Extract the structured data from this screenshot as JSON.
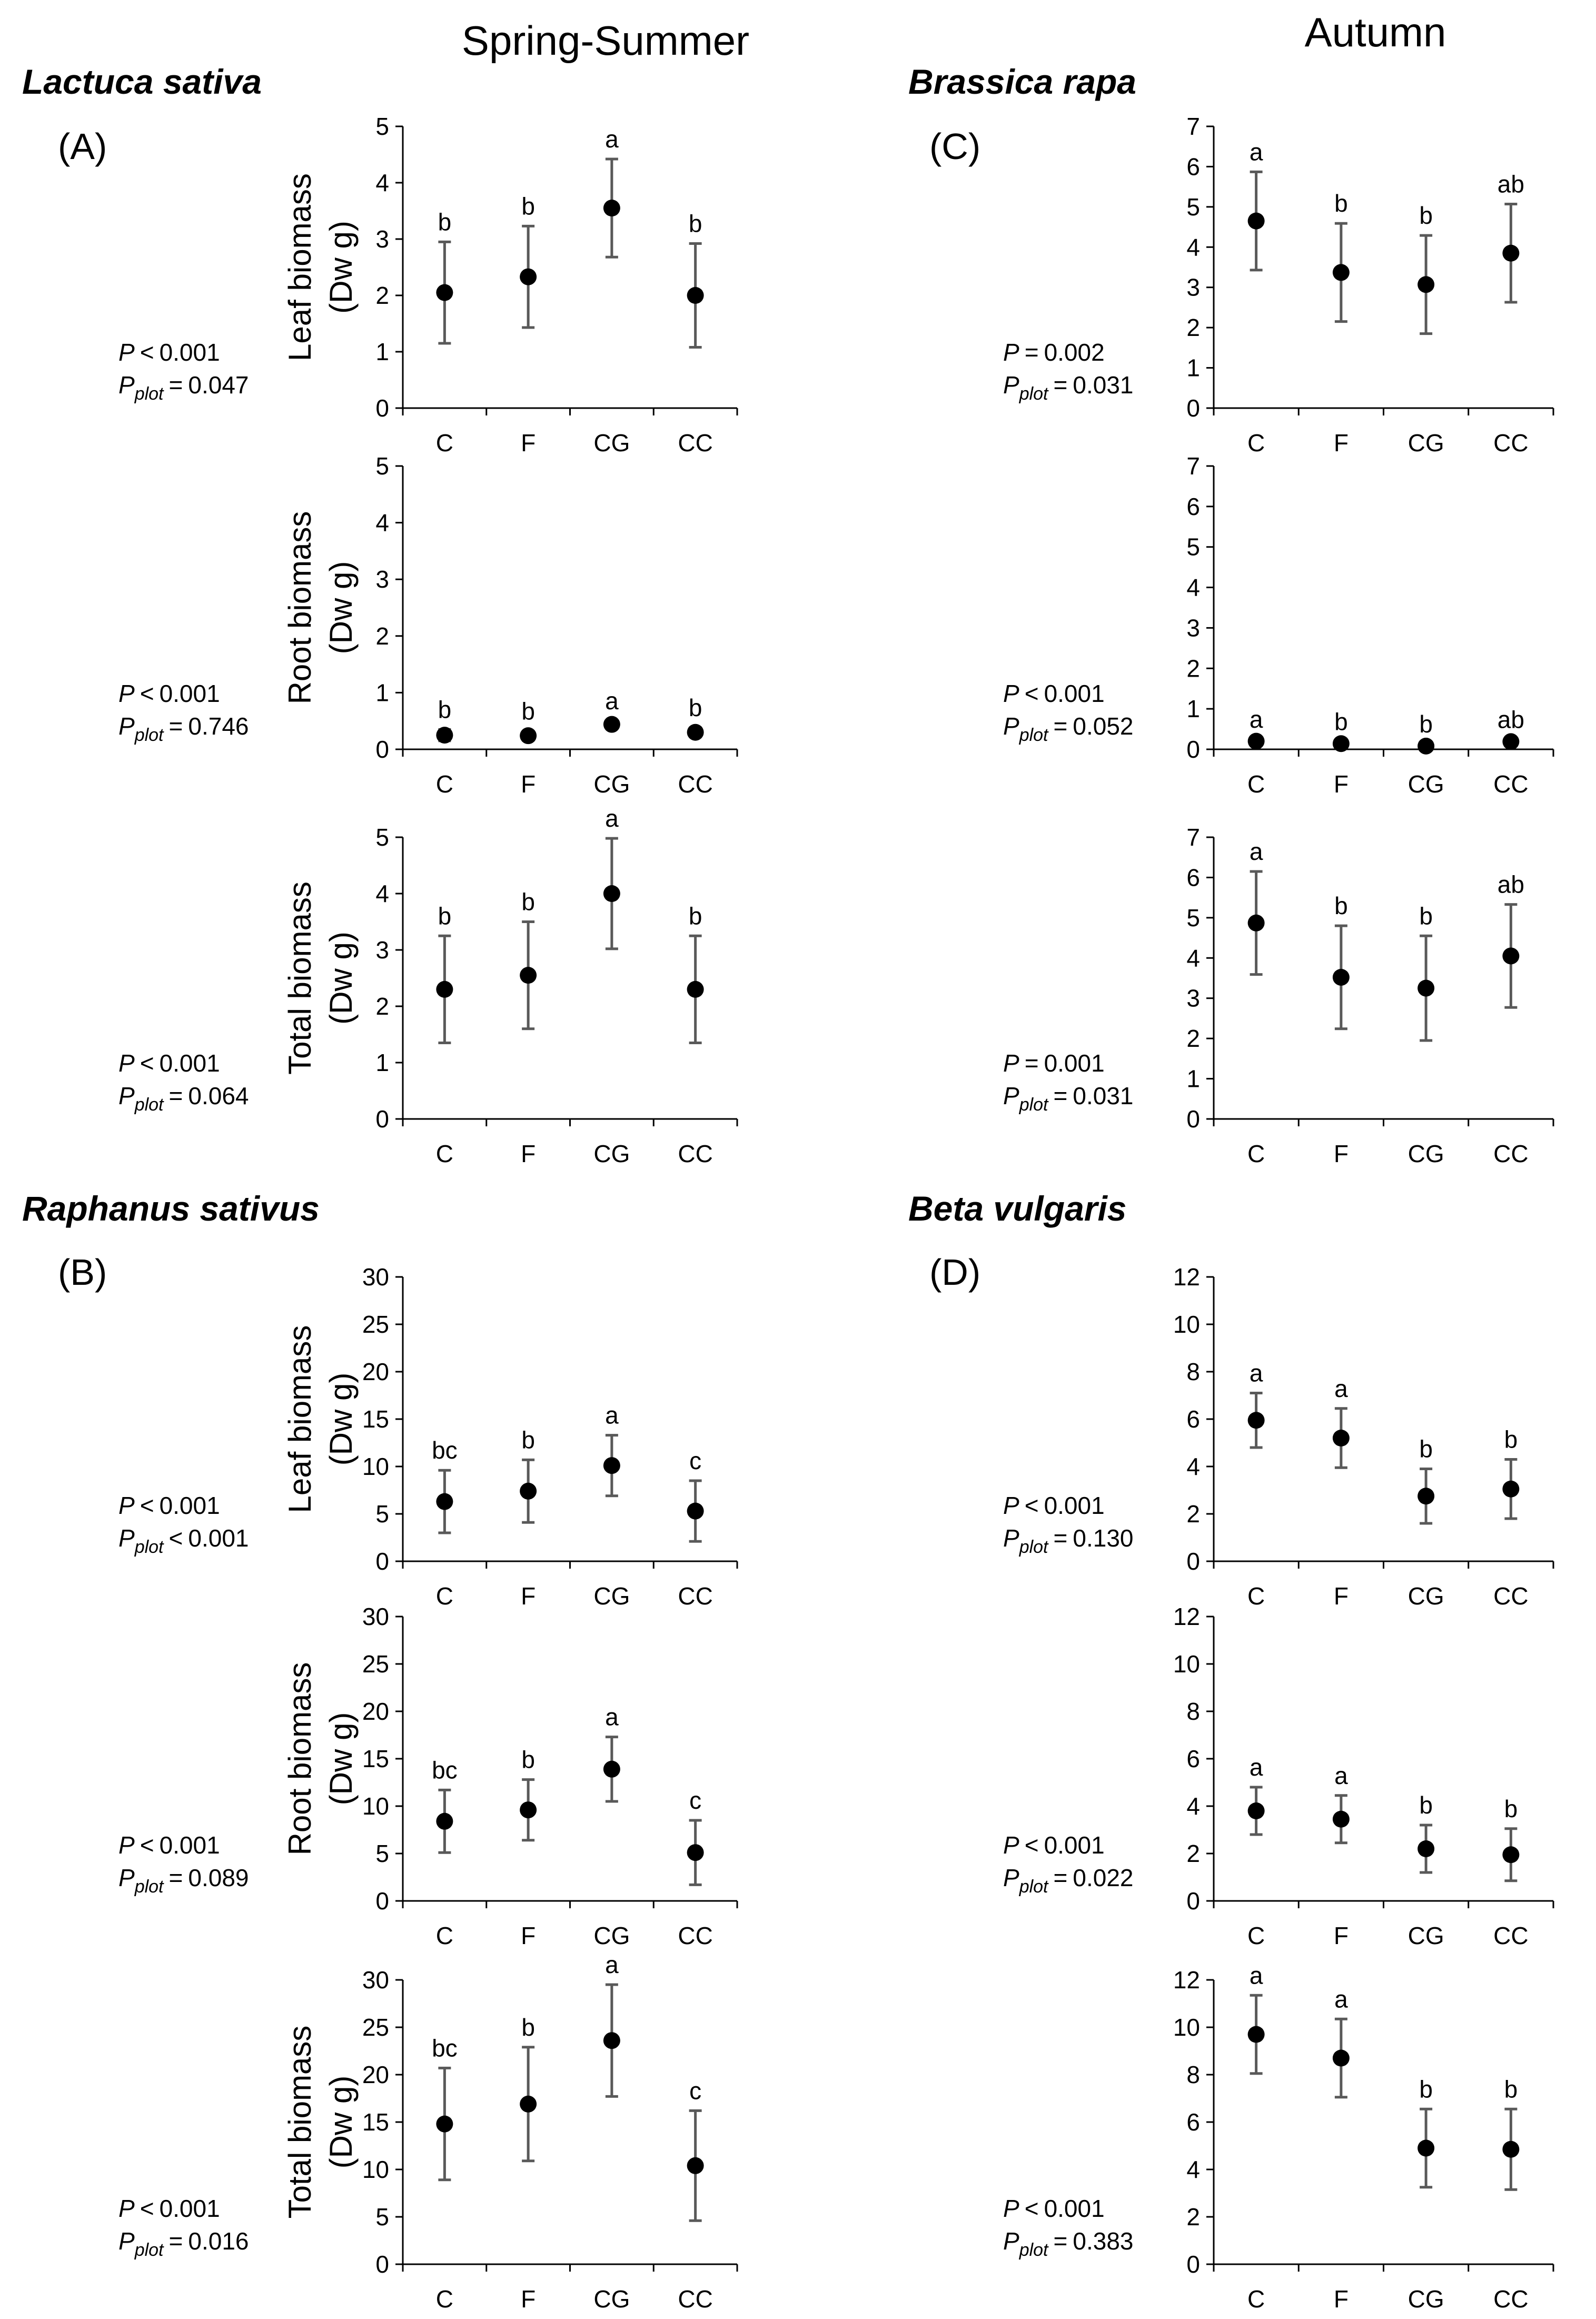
{
  "headers": {
    "left": "Spring-Summer",
    "right": "Autumn"
  },
  "panels": [
    {
      "id": "A",
      "label": "(A)",
      "species": "Lactuca sativa",
      "column": "left",
      "row": "top",
      "plots": [
        {
          "ylabel1": "Leaf biomass",
          "ylabel2": "(Dw g)",
          "ymax": 5,
          "step": 1,
          "stat": {
            "p_prefix": "P",
            "p_sign": "<",
            "p_value": "0.001",
            "pplot_prefix": "P",
            "pplot_sub": "plot",
            "pplot_sign": "=",
            "pplot_value": "0.047"
          }
        },
        {
          "ylabel1": "Root biomass",
          "ylabel2": "(Dw g)",
          "ymax": 5,
          "step": 1,
          "stat": {
            "p_prefix": "P",
            "p_sign": "<",
            "p_value": "0.001",
            "pplot_prefix": "P",
            "pplot_sub": "plot",
            "pplot_sign": "=",
            "pplot_value": "0.746"
          }
        },
        {
          "ylabel1": "Total biomass",
          "ylabel2": "(Dw g)",
          "ymax": 5,
          "step": 1,
          "stat": {
            "p_prefix": "P",
            "p_sign": "<",
            "p_value": "0.001",
            "pplot_prefix": "P",
            "pplot_sub": "plot",
            "pplot_sign": "=",
            "pplot_value": "0.064"
          }
        }
      ]
    },
    {
      "id": "B",
      "label": "(B)",
      "species": "Raphanus sativus",
      "column": "left",
      "row": "bottom",
      "plots": [
        {
          "ylabel1": "Leaf biomass",
          "ylabel2": "(Dw g)",
          "ymax": 30,
          "step": 5,
          "stat": {
            "p_prefix": "P",
            "p_sign": "<",
            "p_value": "0.001",
            "pplot_prefix": "P",
            "pplot_sub": "plot",
            "pplot_sign": "<",
            "pplot_value": "0.001"
          }
        },
        {
          "ylabel1": "Root biomass",
          "ylabel2": "(Dw g)",
          "ymax": 30,
          "step": 5,
          "stat": {
            "p_prefix": "P",
            "p_sign": "<",
            "p_value": "0.001",
            "pplot_prefix": "P",
            "pplot_sub": "plot",
            "pplot_sign": "=",
            "pplot_value": "0.089"
          }
        },
        {
          "ylabel1": "Total biomass",
          "ylabel2": "(Dw g)",
          "ymax": 30,
          "step": 5,
          "stat": {
            "p_prefix": "P",
            "p_sign": "<",
            "p_value": "0.001",
            "pplot_prefix": "P",
            "pplot_sub": "plot",
            "pplot_sign": "=",
            "pplot_value": "0.016"
          }
        }
      ]
    },
    {
      "id": "C",
      "label": "(C)",
      "species": "Brassica rapa",
      "column": "right",
      "row": "top",
      "plots": [
        {
          "ylabel1": "",
          "ylabel2": "",
          "ymax": 7,
          "step": 1,
          "stat": {
            "p_prefix": "P",
            "p_sign": "=",
            "p_value": "0.002",
            "pplot_prefix": "P",
            "pplot_sub": "plot",
            "pplot_sign": "=",
            "pplot_value": "0.031"
          }
        },
        {
          "ylabel1": "",
          "ylabel2": "",
          "ymax": 7,
          "step": 1,
          "stat": {
            "p_prefix": "P",
            "p_sign": "<",
            "p_value": "0.001",
            "pplot_prefix": "P",
            "pplot_sub": "plot",
            "pplot_sign": "=",
            "pplot_value": "0.052"
          }
        },
        {
          "ylabel1": "",
          "ylabel2": "",
          "ymax": 7,
          "step": 1,
          "stat": {
            "p_prefix": "P",
            "p_sign": "=",
            "p_value": "0.001",
            "pplot_prefix": "P",
            "pplot_sub": "plot",
            "pplot_sign": "=",
            "pplot_value": "0.031"
          }
        }
      ]
    },
    {
      "id": "D",
      "label": "(D)",
      "species": "Beta vulgaris",
      "column": "right",
      "row": "bottom",
      "plots": [
        {
          "ylabel1": "",
          "ylabel2": "",
          "ymax": 12,
          "step": 2,
          "stat": {
            "p_prefix": "P",
            "p_sign": "<",
            "p_value": "0.001",
            "pplot_prefix": "P",
            "pplot_sub": "plot",
            "pplot_sign": "=",
            "pplot_value": "0.130"
          }
        },
        {
          "ylabel1": "",
          "ylabel2": "",
          "ymax": 12,
          "step": 2,
          "stat": {
            "p_prefix": "P",
            "p_sign": "<",
            "p_value": "0.001",
            "pplot_prefix": "P",
            "pplot_sub": "plot",
            "pplot_sign": "=",
            "pplot_value": "0.022"
          }
        },
        {
          "ylabel1": "",
          "ylabel2": "",
          "ymax": 12,
          "step": 2,
          "stat": {
            "p_prefix": "P",
            "p_sign": "<",
            "p_value": "0.001",
            "pplot_prefix": "P",
            "pplot_sub": "plot",
            "pplot_sign": "=",
            "pplot_value": "0.383"
          }
        }
      ]
    }
  ],
  "chart_data": [
    {
      "type": "scatter",
      "title": "Lactuca sativa (A) Leaf biomass",
      "ylabel": "Leaf biomass (Dw g)",
      "categories": [
        "C",
        "F",
        "CG",
        "CC"
      ],
      "ylim": [
        0,
        5
      ],
      "values": [
        2.05,
        2.33,
        3.55,
        2.0
      ],
      "errors": [
        0.9,
        0.9,
        0.87,
        0.92
      ],
      "letters": [
        "b",
        "b",
        "a",
        "b"
      ]
    },
    {
      "type": "scatter",
      "title": "Lactuca sativa (A) Root biomass",
      "ylabel": "Root biomass (Dw g)",
      "categories": [
        "C",
        "F",
        "CG",
        "CC"
      ],
      "ylim": [
        0,
        5
      ],
      "values": [
        0.25,
        0.24,
        0.44,
        0.3
      ],
      "errors": [
        0.1,
        0.08,
        0.06,
        0.08
      ],
      "letters": [
        "b",
        "b",
        "a",
        "b"
      ]
    },
    {
      "type": "scatter",
      "title": "Lactuca sativa (A) Total biomass",
      "ylabel": "Total biomass (Dw g)",
      "categories": [
        "C",
        "F",
        "CG",
        "CC"
      ],
      "ylim": [
        0,
        5
      ],
      "values": [
        2.3,
        2.55,
        4.0,
        2.3
      ],
      "errors": [
        0.95,
        0.95,
        0.98,
        0.95
      ],
      "letters": [
        "b",
        "b",
        "a",
        "b"
      ]
    },
    {
      "type": "scatter",
      "title": "Raphanus sativus (B) Leaf biomass",
      "ylabel": "Leaf biomass (Dw g)",
      "categories": [
        "C",
        "F",
        "CG",
        "CC"
      ],
      "ylim": [
        0,
        30
      ],
      "values": [
        6.3,
        7.4,
        10.1,
        5.3
      ],
      "errors": [
        3.3,
        3.3,
        3.2,
        3.2
      ],
      "letters": [
        "bc",
        "b",
        "a",
        "c"
      ]
    },
    {
      "type": "scatter",
      "title": "Raphanus sativus (B) Root biomass",
      "ylabel": "Root biomass (Dw g)",
      "categories": [
        "C",
        "F",
        "CG",
        "CC"
      ],
      "ylim": [
        0,
        30
      ],
      "values": [
        8.4,
        9.6,
        13.9,
        5.1
      ],
      "errors": [
        3.3,
        3.2,
        3.4,
        3.4
      ],
      "letters": [
        "bc",
        "b",
        "a",
        "c"
      ]
    },
    {
      "type": "scatter",
      "title": "Raphanus sativus (B) Total biomass",
      "ylabel": "Total biomass (Dw g)",
      "categories": [
        "C",
        "F",
        "CG",
        "CC"
      ],
      "ylim": [
        0,
        30
      ],
      "values": [
        14.8,
        16.9,
        23.6,
        10.4
      ],
      "errors": [
        5.9,
        6.0,
        5.9,
        5.8
      ],
      "letters": [
        "bc",
        "b",
        "a",
        "c"
      ]
    },
    {
      "type": "scatter",
      "title": "Brassica rapa (C) Leaf biomass",
      "ylabel": "",
      "categories": [
        "C",
        "F",
        "CG",
        "CC"
      ],
      "ylim": [
        0,
        7
      ],
      "values": [
        4.65,
        3.37,
        3.07,
        3.85
      ],
      "errors": [
        1.22,
        1.22,
        1.22,
        1.22
      ],
      "letters": [
        "a",
        "b",
        "b",
        "ab"
      ]
    },
    {
      "type": "scatter",
      "title": "Brassica rapa (C) Root biomass",
      "ylabel": "",
      "categories": [
        "C",
        "F",
        "CG",
        "CC"
      ],
      "ylim": [
        0,
        7
      ],
      "values": [
        0.2,
        0.14,
        0.08,
        0.19
      ],
      "errors": [
        0.05,
        0.05,
        0.05,
        0.05
      ],
      "letters": [
        "a",
        "b",
        "b",
        "ab"
      ]
    },
    {
      "type": "scatter",
      "title": "Brassica rapa (C) Total biomass",
      "ylabel": "",
      "categories": [
        "C",
        "F",
        "CG",
        "CC"
      ],
      "ylim": [
        0,
        7
      ],
      "values": [
        4.87,
        3.52,
        3.25,
        4.05
      ],
      "errors": [
        1.28,
        1.28,
        1.3,
        1.28
      ],
      "letters": [
        "a",
        "b",
        "b",
        "ab"
      ]
    },
    {
      "type": "scatter",
      "title": "Beta vulgaris (D) Leaf biomass",
      "ylabel": "",
      "categories": [
        "C",
        "F",
        "CG",
        "CC"
      ],
      "ylim": [
        0,
        12
      ],
      "values": [
        5.95,
        5.2,
        2.75,
        3.05
      ],
      "errors": [
        1.15,
        1.25,
        1.15,
        1.25
      ],
      "letters": [
        "a",
        "a",
        "b",
        "b"
      ]
    },
    {
      "type": "scatter",
      "title": "Beta vulgaris (D) Root biomass",
      "ylabel": "",
      "categories": [
        "C",
        "F",
        "CG",
        "CC"
      ],
      "ylim": [
        0,
        12
      ],
      "values": [
        3.8,
        3.45,
        2.2,
        1.95
      ],
      "errors": [
        1.0,
        1.0,
        1.0,
        1.1
      ],
      "letters": [
        "a",
        "a",
        "b",
        "b"
      ]
    },
    {
      "type": "scatter",
      "title": "Beta vulgaris (D) Total biomass",
      "ylabel": "",
      "categories": [
        "C",
        "F",
        "CG",
        "CC"
      ],
      "ylim": [
        0,
        12
      ],
      "values": [
        9.7,
        8.7,
        4.9,
        4.85
      ],
      "errors": [
        1.65,
        1.65,
        1.65,
        1.7
      ],
      "letters": [
        "a",
        "a",
        "b",
        "b"
      ]
    }
  ]
}
